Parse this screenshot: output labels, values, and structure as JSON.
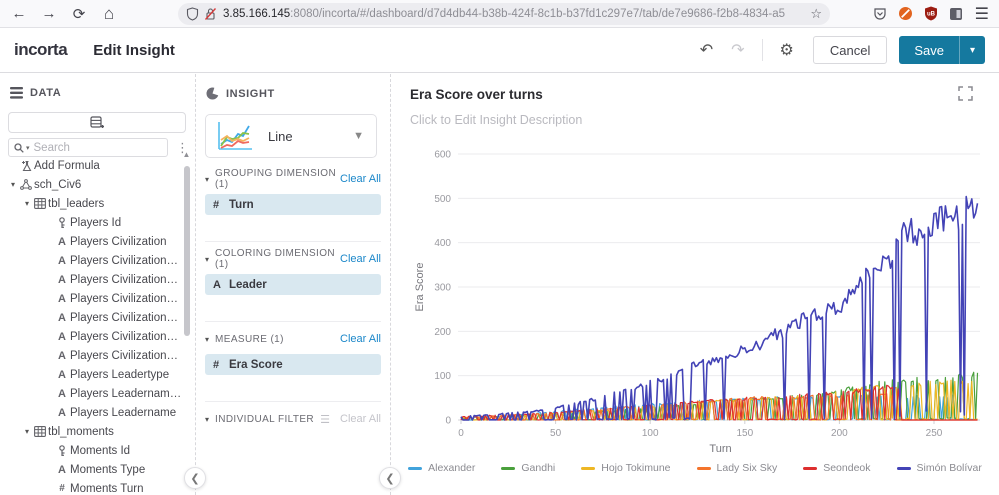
{
  "browser": {
    "url_host": "3.85.166.145",
    "url_rest": ":8080/incorta/#/dashboard/d7d4db44-b38b-424f-8c1b-b37fd1c297e7/tab/de7e9686-f2b8-4834-a5"
  },
  "header": {
    "logo": "incorta",
    "title": "Edit Insight",
    "cancel_label": "Cancel",
    "save_label": "Save",
    "accent_color": "#15799f"
  },
  "data_panel": {
    "title": "DATA",
    "search_placeholder": "Search",
    "tree": [
      {
        "icon": "formula",
        "label": "Add Formula",
        "indent": 8,
        "caret": false
      },
      {
        "icon": "schema",
        "label": "sch_Civ6",
        "indent": 8,
        "caret": true
      },
      {
        "icon": "table",
        "label": "tbl_leaders",
        "indent": 22,
        "caret": true
      },
      {
        "icon": "key",
        "label": "Players Id",
        "indent": 44,
        "caret": false
      },
      {
        "icon": "text",
        "label": "Players Civilization",
        "indent": 44,
        "caret": false
      },
      {
        "icon": "text",
        "label": "Players Civilizationdescripti...",
        "indent": 44,
        "caret": false
      },
      {
        "icon": "text",
        "label": "Players Civilizationdescripti...",
        "indent": 44,
        "caret": false
      },
      {
        "icon": "text",
        "label": "Players Civilizationshortdes...",
        "indent": 44,
        "caret": false
      },
      {
        "icon": "text",
        "label": "Players Civilizationshortdes...",
        "indent": 44,
        "caret": false
      },
      {
        "icon": "text",
        "label": "Players Civilizationadjective...",
        "indent": 44,
        "caret": false
      },
      {
        "icon": "text",
        "label": "Players Civilizationadjective",
        "indent": 44,
        "caret": false
      },
      {
        "icon": "text",
        "label": "Players Leadertype",
        "indent": 44,
        "caret": false
      },
      {
        "icon": "text",
        "label": "Players Leadernamekey",
        "indent": 44,
        "caret": false
      },
      {
        "icon": "text",
        "label": "Players Leadername",
        "indent": 44,
        "caret": false
      },
      {
        "icon": "table",
        "label": "tbl_moments",
        "indent": 22,
        "caret": true
      },
      {
        "icon": "key",
        "label": "Moments Id",
        "indent": 44,
        "caret": false
      },
      {
        "icon": "text",
        "label": "Moments Type",
        "indent": 44,
        "caret": false
      },
      {
        "icon": "number",
        "label": "Moments Turn",
        "indent": 44,
        "caret": false
      }
    ]
  },
  "insight_panel": {
    "title": "INSIGHT",
    "chart_type": "Line",
    "sections": [
      {
        "label": "GROUPING DIMENSION (1)",
        "clear_label": "Clear All",
        "clear_active": true,
        "filter_icon": false,
        "pills": [
          {
            "icon": "#",
            "label": "Turn"
          }
        ]
      },
      {
        "label": "COLORING DIMENSION (1)",
        "clear_label": "Clear All",
        "clear_active": true,
        "filter_icon": false,
        "pills": [
          {
            "icon": "A",
            "label": "Leader"
          }
        ]
      },
      {
        "label": "MEASURE (1)",
        "clear_label": "Clear All",
        "clear_active": true,
        "filter_icon": false,
        "pills": [
          {
            "icon": "#",
            "label": "Era Score"
          }
        ]
      },
      {
        "label": "INDIVIDUAL FILTER",
        "clear_label": "Clear All",
        "clear_active": false,
        "filter_icon": true,
        "pills": []
      }
    ]
  },
  "chart": {
    "title": "Era Score over turns",
    "description_placeholder": "Click to Edit Insight Description"
  },
  "chart_data": {
    "type": "line",
    "title": "Era Score over turns",
    "xlabel": "Turn",
    "ylabel": "Era Score",
    "xlim": [
      0,
      273
    ],
    "ylim": [
      0,
      600
    ],
    "xticks": [
      0,
      50,
      100,
      150,
      200,
      250
    ],
    "yticks": [
      0,
      100,
      200,
      300,
      400,
      500,
      600
    ],
    "grid": "horizontal",
    "legend_position": "bottom",
    "note": "Each leader's era score saw-tooths: values repeatedly drop to 0 between peaks; envelope arrays give the peak trend per turn.",
    "series": [
      {
        "name": "Alexander",
        "color": "#41a3dc",
        "width": 1.2,
        "seed": 1,
        "envelope": [
          [
            0,
            5
          ],
          [
            30,
            12
          ],
          [
            60,
            24
          ],
          [
            90,
            34
          ],
          [
            120,
            44
          ],
          [
            150,
            50
          ],
          [
            180,
            55
          ],
          [
            210,
            60
          ],
          [
            240,
            55
          ],
          [
            260,
            58
          ],
          [
            273,
            60
          ]
        ],
        "drop_rates": [
          [
            0,
            0.5
          ],
          [
            230,
            0.8
          ]
        ]
      },
      {
        "name": "Gandhi",
        "color": "#4aa03c",
        "width": 1.2,
        "seed": 2,
        "envelope": [
          [
            0,
            5
          ],
          [
            40,
            12
          ],
          [
            80,
            22
          ],
          [
            120,
            38
          ],
          [
            150,
            48
          ],
          [
            180,
            58
          ],
          [
            200,
            68
          ],
          [
            215,
            88
          ],
          [
            230,
            95
          ],
          [
            245,
            98
          ],
          [
            260,
            103
          ],
          [
            273,
            112
          ]
        ],
        "drop_rates": [
          [
            0,
            0.5
          ]
        ]
      },
      {
        "name": "Hojo Tokimune",
        "color": "#eeb724",
        "width": 1.2,
        "seed": 3,
        "envelope": [
          [
            0,
            5
          ],
          [
            40,
            14
          ],
          [
            80,
            25
          ],
          [
            120,
            40
          ],
          [
            150,
            50
          ],
          [
            180,
            55
          ],
          [
            200,
            65
          ],
          [
            220,
            80
          ],
          [
            240,
            86
          ],
          [
            260,
            90
          ],
          [
            273,
            96
          ]
        ],
        "drop_rates": [
          [
            0,
            0.5
          ]
        ]
      },
      {
        "name": "Lady Six Sky",
        "color": "#f4742c",
        "width": 1.2,
        "seed": 4,
        "envelope": [
          [
            0,
            6
          ],
          [
            40,
            15
          ],
          [
            80,
            28
          ],
          [
            120,
            42
          ],
          [
            150,
            52
          ],
          [
            170,
            55
          ],
          [
            200,
            58
          ],
          [
            215,
            65
          ],
          [
            228,
            58
          ],
          [
            230,
            0
          ],
          [
            273,
            0
          ]
        ],
        "drop_rates": [
          [
            0,
            0.5
          ]
        ]
      },
      {
        "name": "Seondeok",
        "color": "#dd2f2f",
        "width": 1.2,
        "seed": 5,
        "envelope": [
          [
            0,
            8
          ],
          [
            40,
            15
          ],
          [
            80,
            28
          ],
          [
            120,
            42
          ],
          [
            150,
            52
          ],
          [
            175,
            57
          ],
          [
            190,
            62
          ],
          [
            205,
            68
          ],
          [
            220,
            78
          ],
          [
            231,
            80
          ],
          [
            233,
            0
          ],
          [
            273,
            0
          ]
        ],
        "drop_rates": [
          [
            0,
            0.5
          ]
        ]
      },
      {
        "name": "Simón Bolívar",
        "color": "#4343b6",
        "width": 1.6,
        "seed": 6,
        "envelope": [
          [
            0,
            8
          ],
          [
            20,
            14
          ],
          [
            40,
            22
          ],
          [
            60,
            38
          ],
          [
            80,
            62
          ],
          [
            100,
            90
          ],
          [
            110,
            105
          ],
          [
            120,
            130
          ],
          [
            130,
            140
          ],
          [
            140,
            152
          ],
          [
            150,
            172
          ],
          [
            158,
            180
          ],
          [
            162,
            205
          ],
          [
            170,
            212
          ],
          [
            180,
            240
          ],
          [
            190,
            264
          ],
          [
            200,
            275
          ],
          [
            205,
            295
          ],
          [
            210,
            338
          ],
          [
            215,
            360
          ],
          [
            220,
            372
          ],
          [
            225,
            385
          ],
          [
            230,
            415
          ],
          [
            235,
            455
          ],
          [
            246,
            452
          ],
          [
            250,
            478
          ],
          [
            253,
            490
          ],
          [
            258,
            492
          ],
          [
            262,
            497
          ],
          [
            266,
            502
          ],
          [
            270,
            512
          ],
          [
            273,
            520
          ]
        ],
        "drop_rates": [
          [
            0,
            0.45
          ],
          [
            125,
            0.09
          ]
        ]
      }
    ]
  }
}
